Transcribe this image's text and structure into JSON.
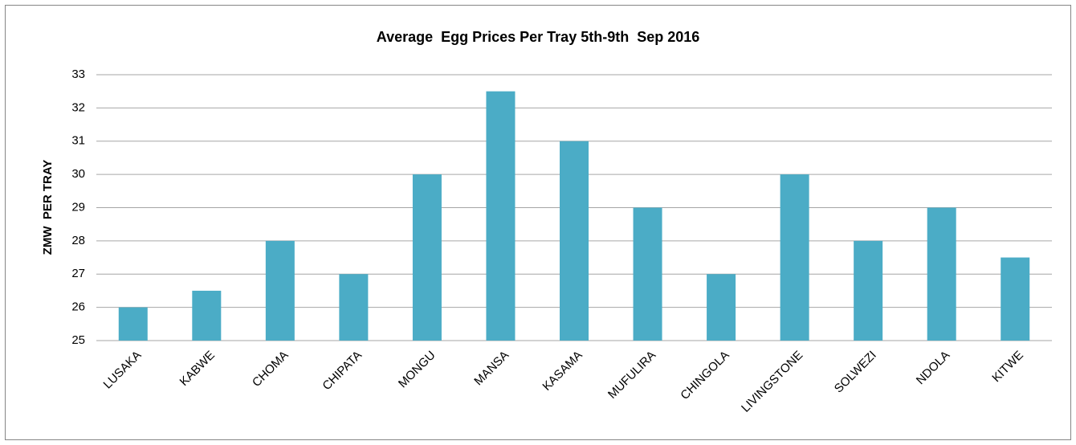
{
  "chart_data": {
    "type": "bar",
    "title": "Average  Egg Prices Per Tray 5th-9th  Sep 2016",
    "y_label": "ZMW  PER TRAY",
    "categories": [
      "LUSAKA",
      "KABWE",
      "CHOMA",
      "CHIPATA",
      "MONGU",
      "MANSA",
      "KASAMA",
      "MUFULIRA",
      "CHINGOLA",
      "LIVINGSTONE",
      "SOLWEZI",
      "NDOLA",
      "KITWE"
    ],
    "values": [
      26,
      26.5,
      28,
      27,
      30,
      32.5,
      31,
      29,
      27,
      30,
      28,
      29,
      27.5
    ],
    "color": "#4bacc6",
    "ylim": [
      25,
      33
    ],
    "yticks": [
      25,
      26,
      27,
      28,
      29,
      30,
      31,
      32,
      33
    ],
    "grid": true
  }
}
